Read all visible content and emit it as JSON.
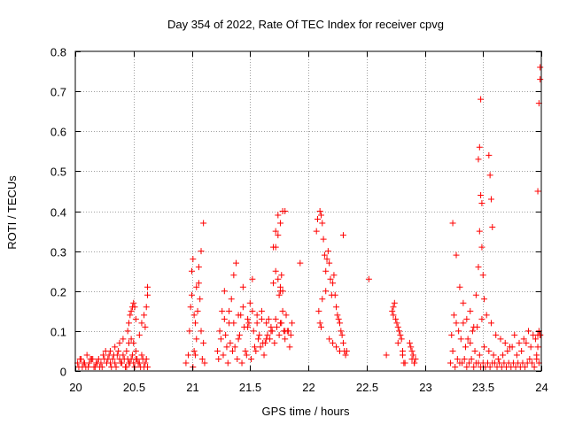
{
  "chart_data": {
    "type": "scatter",
    "title": "Day 354 of 2022, Rate Of TEC Index for receiver cpvg",
    "xlabel": "GPS time / hours",
    "ylabel": "ROTI / TECUs",
    "xlim": [
      20,
      24
    ],
    "ylim": [
      0,
      0.8
    ],
    "xticks": [
      20,
      20.5,
      21,
      21.5,
      22,
      22.5,
      23,
      23.5,
      24
    ],
    "xtick_labels": [
      "20",
      "20.5",
      "21",
      "21.5",
      "22",
      "22.5",
      "23",
      "23.5",
      "24"
    ],
    "yticks": [
      0,
      0.1,
      0.2,
      0.3,
      0.4,
      0.5,
      0.6,
      0.7,
      0.8
    ],
    "ytick_labels": [
      "0",
      "0.1",
      "0.2",
      "0.3",
      "0.4",
      "0.5",
      "0.6",
      "0.7",
      "0.8"
    ],
    "grid": true,
    "marker": "+",
    "marker_color": "#ff0000",
    "series": [
      {
        "x": [
          20.02,
          20.04,
          20.06,
          20.08,
          20.1,
          20.12,
          20.14,
          20.16,
          20.18,
          20.2,
          20.22,
          20.24,
          20.26,
          20.28,
          20.3,
          20.32,
          20.34,
          20.36,
          20.38,
          20.4,
          20.42,
          20.44,
          20.46,
          20.48,
          20.5,
          20.52,
          20.54,
          20.56,
          20.58,
          20.6,
          20.62,
          20.03,
          20.07,
          20.11,
          20.15,
          20.19,
          20.23,
          20.27,
          20.31,
          20.35,
          20.39,
          20.43,
          20.47,
          20.51,
          20.55,
          20.59,
          20.05,
          20.09,
          20.13,
          20.17,
          20.21,
          20.25,
          20.29,
          20.33,
          20.37,
          20.41,
          20.45,
          20.49,
          20.53,
          20.57,
          20.61,
          20.3,
          20.34,
          20.38,
          20.41,
          20.44,
          20.46,
          20.48,
          20.5,
          20.52,
          20.55,
          20.57,
          20.59,
          20.61,
          20.62,
          20.62,
          20.6,
          20.45,
          20.46,
          20.47,
          20.48,
          20.49,
          20.5,
          20.51,
          20.52,
          20.95,
          20.97,
          20.98,
          20.99,
          21.0,
          21.0,
          21.01,
          21.02,
          21.03,
          21.04,
          21.05,
          21.06,
          21.07,
          21.08,
          21.09,
          21.1,
          21.11,
          21.06,
          21.08,
          21.1,
          21.02,
          21.04,
          21.01,
          21.03,
          21.22,
          21.24,
          21.26,
          21.28,
          21.3,
          21.32,
          21.34,
          21.36,
          21.38,
          21.4,
          21.42,
          21.44,
          21.46,
          21.48,
          21.5,
          21.52,
          21.54,
          21.56,
          21.58,
          21.6,
          21.62,
          21.64,
          21.66,
          21.68,
          21.7,
          21.72,
          21.74,
          21.76,
          21.78,
          21.8,
          21.82,
          21.84,
          21.86,
          21.23,
          21.27,
          21.31,
          21.35,
          21.39,
          21.43,
          21.47,
          21.51,
          21.55,
          21.59,
          21.63,
          21.67,
          21.71,
          21.75,
          21.79,
          21.83,
          21.25,
          21.29,
          21.33,
          21.37,
          21.41,
          21.45,
          21.49,
          21.53,
          21.57,
          21.61,
          21.65,
          21.69,
          21.73,
          21.77,
          21.81,
          21.85,
          21.28,
          21.32,
          21.36,
          21.4,
          21.44,
          21.48,
          21.52,
          21.56,
          21.6,
          21.64,
          21.68,
          21.72,
          21.76,
          21.8,
          21.7,
          21.72,
          21.74,
          21.75,
          21.76,
          21.77,
          21.78,
          21.93,
          21.72,
          21.74,
          21.76,
          21.78,
          21.8,
          22.07,
          22.08,
          22.1,
          22.11,
          22.12,
          22.13,
          22.14,
          22.15,
          22.16,
          22.17,
          22.18,
          22.19,
          22.2,
          22.21,
          22.22,
          22.23,
          22.24,
          22.25,
          22.26,
          22.27,
          22.28,
          22.29,
          22.3,
          22.31,
          22.32,
          22.33,
          22.09,
          22.1,
          22.11,
          22.12,
          22.15,
          22.18,
          22.21,
          22.24,
          22.27,
          22.3,
          22.52,
          22.67,
          22.72,
          22.74,
          22.76,
          22.78,
          22.8,
          22.82,
          22.88,
          22.9,
          22.92,
          22.73,
          22.77,
          22.81,
          22.89,
          22.91,
          22.73,
          22.75,
          22.77,
          22.79,
          22.81,
          22.83,
          22.87,
          22.89,
          22.91,
          23.22,
          23.24,
          23.26,
          23.28,
          23.3,
          23.32,
          23.34,
          23.36,
          23.38,
          23.4,
          23.42,
          23.44,
          23.46,
          23.48,
          23.5,
          23.52,
          23.54,
          23.56,
          23.58,
          23.6,
          23.62,
          23.64,
          23.66,
          23.68,
          23.7,
          23.72,
          23.74,
          23.76,
          23.78,
          23.8,
          23.82,
          23.84,
          23.86,
          23.88,
          23.9,
          23.92,
          23.94,
          23.96,
          23.98,
          23.23,
          23.27,
          23.31,
          23.35,
          23.39,
          23.43,
          23.47,
          23.51,
          23.55,
          23.59,
          23.63,
          23.67,
          23.71,
          23.75,
          23.79,
          23.83,
          23.87,
          23.91,
          23.95,
          23.99,
          23.25,
          23.29,
          23.33,
          23.37,
          23.41,
          23.45,
          23.49,
          23.53,
          23.57,
          23.61,
          23.65,
          23.69,
          23.73,
          23.77,
          23.81,
          23.85,
          23.89,
          23.93,
          23.97,
          23.24,
          23.27,
          23.3,
          23.33,
          23.36,
          23.39,
          23.42,
          23.44,
          23.46,
          23.47,
          23.48,
          23.49,
          23.5,
          23.51,
          23.46,
          23.47,
          23.48,
          23.49,
          23.55,
          23.56,
          23.57,
          23.58,
          23.97,
          23.98,
          23.99,
          23.99,
          23.99,
          23.98,
          23.97,
          23.96
        ],
        "y": [
          0.02,
          0.03,
          0.01,
          0.02,
          0.04,
          0.02,
          0.03,
          0.01,
          0.02,
          0.03,
          0.02,
          0.04,
          0.05,
          0.03,
          0.02,
          0.03,
          0.02,
          0.04,
          0.03,
          0.02,
          0.03,
          0.01,
          0.02,
          0.03,
          0.02,
          0.03,
          0.02,
          0.01,
          0.03,
          0.02,
          0.01,
          0.01,
          0.02,
          0.01,
          0.03,
          0.02,
          0.01,
          0.02,
          0.01,
          0.01,
          0.02,
          0.01,
          0.02,
          0.01,
          0.02,
          0.01,
          0.03,
          0.01,
          0.03,
          0.01,
          0.01,
          0.03,
          0.04,
          0.04,
          0.05,
          0.04,
          0.03,
          0.04,
          0.03,
          0.04,
          0.03,
          0.05,
          0.06,
          0.07,
          0.08,
          0.05,
          0.07,
          0.08,
          0.07,
          0.05,
          0.09,
          0.12,
          0.14,
          0.16,
          0.19,
          0.21,
          0.11,
          0.1,
          0.12,
          0.14,
          0.15,
          0.16,
          0.17,
          0.16,
          0.13,
          0.02,
          0.04,
          0.1,
          0.16,
          0.19,
          0.25,
          0.28,
          0.05,
          0.12,
          0.08,
          0.15,
          0.22,
          0.18,
          0.1,
          0.03,
          0.07,
          0.02,
          0.26,
          0.3,
          0.37,
          0.14,
          0.21,
          0.01,
          0.04,
          0.05,
          0.1,
          0.15,
          0.2,
          0.06,
          0.12,
          0.18,
          0.24,
          0.27,
          0.08,
          0.14,
          0.21,
          0.05,
          0.11,
          0.17,
          0.23,
          0.06,
          0.12,
          0.09,
          0.15,
          0.04,
          0.08,
          0.13,
          0.1,
          0.31,
          0.35,
          0.39,
          0.2,
          0.15,
          0.08,
          0.1,
          0.06,
          0.12,
          0.03,
          0.04,
          0.02,
          0.05,
          0.03,
          0.02,
          0.04,
          0.03,
          0.05,
          0.06,
          0.07,
          0.08,
          0.07,
          0.09,
          0.1,
          0.1,
          0.08,
          0.09,
          0.07,
          0.06,
          0.09,
          0.11,
          0.12,
          0.1,
          0.08,
          0.07,
          0.09,
          0.1,
          0.11,
          0.12,
          0.14,
          0.09,
          0.13,
          0.15,
          0.12,
          0.14,
          0.16,
          0.13,
          0.15,
          0.14,
          0.13,
          0.12,
          0.11,
          0.13,
          0.12,
          0.1,
          0.22,
          0.25,
          0.23,
          0.19,
          0.21,
          0.24,
          0.2,
          0.27,
          0.31,
          0.34,
          0.37,
          0.4,
          0.4,
          0.35,
          0.38,
          0.4,
          0.39,
          0.37,
          0.33,
          0.29,
          0.25,
          0.28,
          0.3,
          0.27,
          0.23,
          0.19,
          0.22,
          0.24,
          0.19,
          0.16,
          0.14,
          0.13,
          0.12,
          0.1,
          0.09,
          0.07,
          0.05,
          0.04,
          0.05,
          0.15,
          0.12,
          0.11,
          0.18,
          0.2,
          0.08,
          0.07,
          0.06,
          0.05,
          0.34,
          0.23,
          0.04,
          0.15,
          0.17,
          0.12,
          0.1,
          0.08,
          0.02,
          0.06,
          0.04,
          0.03,
          0.14,
          0.07,
          0.05,
          0.03,
          0.02,
          0.16,
          0.13,
          0.11,
          0.09,
          0.04,
          0.02,
          0.07,
          0.05,
          0.02,
          0.02,
          0.05,
          0.01,
          0.03,
          0.02,
          0.02,
          0.03,
          0.01,
          0.02,
          0.03,
          0.01,
          0.02,
          0.02,
          0.01,
          0.02,
          0.01,
          0.02,
          0.01,
          0.02,
          0.02,
          0.01,
          0.02,
          0.01,
          0.02,
          0.01,
          0.02,
          0.01,
          0.02,
          0.01,
          0.02,
          0.01,
          0.02,
          0.01,
          0.02,
          0.03,
          0.02,
          0.01,
          0.03,
          0.02,
          0.09,
          0.12,
          0.08,
          0.06,
          0.07,
          0.05,
          0.04,
          0.06,
          0.05,
          0.04,
          0.03,
          0.04,
          0.05,
          0.06,
          0.04,
          0.05,
          0.07,
          0.06,
          0.08,
          0.09,
          0.14,
          0.1,
          0.12,
          0.08,
          0.1,
          0.11,
          0.13,
          0.14,
          0.12,
          0.09,
          0.08,
          0.07,
          0.06,
          0.09,
          0.07,
          0.08,
          0.1,
          0.09,
          0.09,
          0.37,
          0.29,
          0.21,
          0.17,
          0.13,
          0.15,
          0.11,
          0.19,
          0.26,
          0.35,
          0.44,
          0.31,
          0.24,
          0.18,
          0.53,
          0.56,
          0.68,
          0.42,
          0.54,
          0.49,
          0.43,
          0.36,
          0.45,
          0.67,
          0.73,
          0.76,
          0.09,
          0.1,
          0.06,
          0.04
        ]
      }
    ]
  }
}
